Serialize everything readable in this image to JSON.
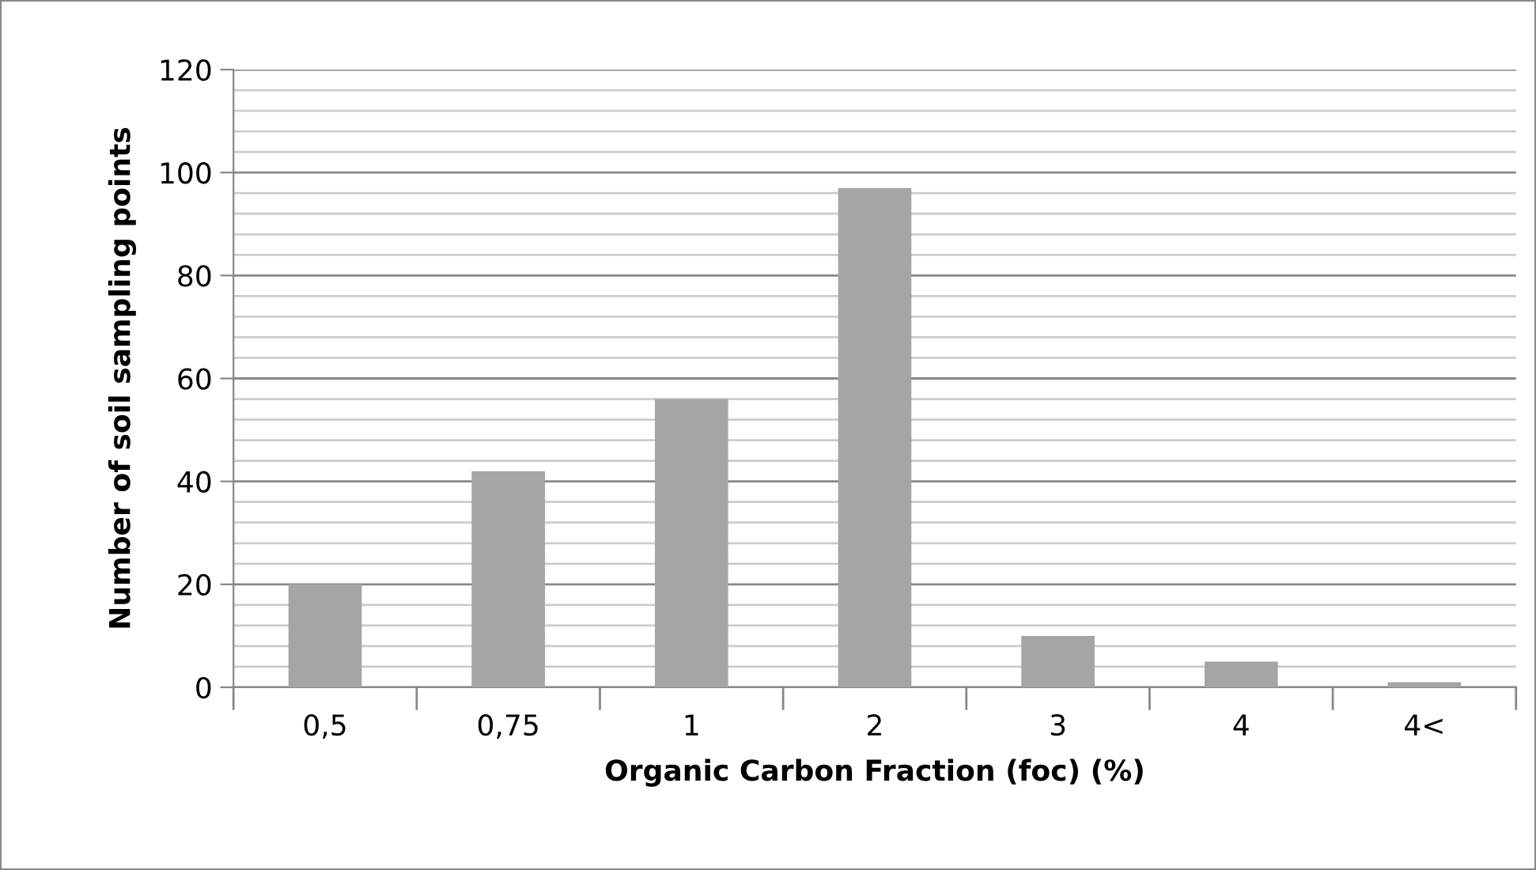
{
  "chart_data": {
    "type": "bar",
    "xlabel": "Organic Carbon Fraction (foc) (%)",
    "ylabel": "Number of soil sampling points",
    "categories": [
      "0,5",
      "0,75",
      "1",
      "2",
      "3",
      "4",
      "4<"
    ],
    "values": [
      20,
      42,
      56,
      97,
      10,
      5,
      1
    ],
    "color": "#a5a5a5",
    "ylim": [
      0,
      120
    ],
    "yticks": [
      0,
      20,
      40,
      60,
      80,
      100,
      120
    ],
    "grid": "y",
    "legend": false
  }
}
